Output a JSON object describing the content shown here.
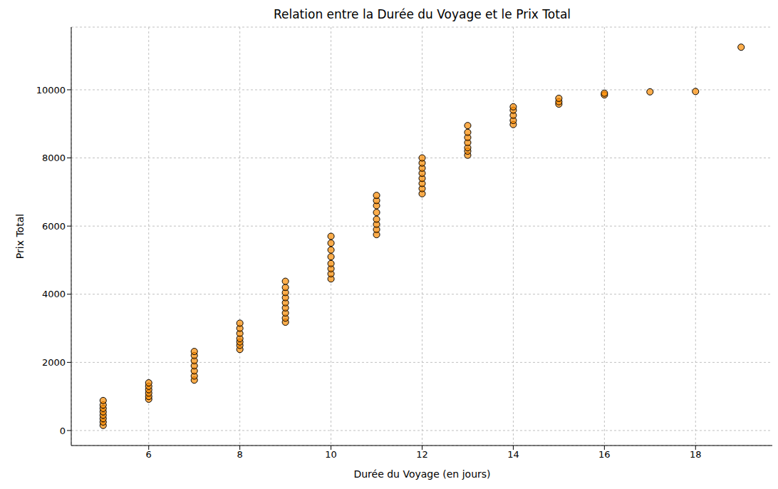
{
  "chart_data": {
    "type": "scatter",
    "title": "Relation entre la Durée du Voyage et le Prix Total",
    "x_label": "Durée du Voyage (en jours)",
    "y_label": "Prix Total",
    "x": [
      5,
      5,
      5,
      5,
      5,
      5,
      5,
      5,
      6,
      6,
      6,
      6,
      6,
      6,
      7,
      7,
      7,
      7,
      7,
      7,
      7,
      8,
      8,
      8,
      8,
      8,
      8,
      8,
      9,
      9,
      9,
      9,
      9,
      9,
      9,
      9,
      9,
      10,
      10,
      10,
      10,
      10,
      10,
      10,
      10,
      11,
      11,
      11,
      11,
      11,
      11,
      11,
      11,
      12,
      12,
      12,
      12,
      12,
      12,
      12,
      12,
      13,
      13,
      13,
      13,
      13,
      13,
      13,
      14,
      14,
      14,
      14,
      14,
      15,
      15,
      15,
      16,
      16,
      17,
      18,
      19
    ],
    "values": [
      150,
      250,
      350,
      450,
      550,
      650,
      750,
      880,
      920,
      1000,
      1100,
      1200,
      1300,
      1400,
      1480,
      1600,
      1750,
      1900,
      2050,
      2200,
      2320,
      2380,
      2500,
      2600,
      2700,
      2850,
      3000,
      3150,
      3180,
      3300,
      3450,
      3600,
      3750,
      3900,
      4050,
      4200,
      4380,
      4450,
      4600,
      4750,
      4900,
      5100,
      5300,
      5500,
      5700,
      5750,
      5900,
      6050,
      6200,
      6400,
      6600,
      6750,
      6900,
      6950,
      7100,
      7250,
      7400,
      7550,
      7700,
      7850,
      8000,
      8080,
      8200,
      8300,
      8450,
      8600,
      8750,
      8950,
      8980,
      9100,
      9250,
      9400,
      9500,
      9580,
      9650,
      9750,
      9850,
      9900,
      9940,
      9950,
      11250
    ],
    "color": "#ff8c00",
    "marker": "circle",
    "xlim": [
      4.3,
      19.7
    ],
    "ylim": [
      -440,
      11840
    ],
    "xticks": [
      6,
      8,
      10,
      12,
      14,
      16,
      18
    ],
    "yticks": [
      0,
      2000,
      4000,
      6000,
      8000,
      10000
    ],
    "grid": true
  }
}
